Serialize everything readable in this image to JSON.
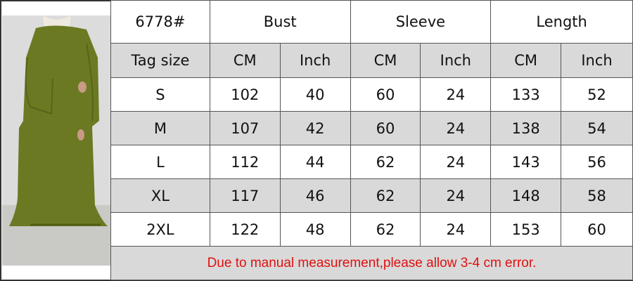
{
  "model": "6778#",
  "groups": [
    "Bust",
    "Sleeve",
    "Length"
  ],
  "subheader": {
    "tag_label": "Tag size",
    "units": [
      "CM",
      "Inch",
      "CM",
      "Inch",
      "CM",
      "Inch"
    ]
  },
  "rows": [
    {
      "size": "S",
      "values": [
        "102",
        "40",
        "60",
        "24",
        "133",
        "52"
      ]
    },
    {
      "size": "M",
      "values": [
        "107",
        "42",
        "60",
        "24",
        "138",
        "54"
      ]
    },
    {
      "size": "L",
      "values": [
        "112",
        "44",
        "62",
        "24",
        "143",
        "56"
      ]
    },
    {
      "size": "XL",
      "values": [
        "117",
        "46",
        "62",
        "24",
        "148",
        "58"
      ]
    },
    {
      "size": "2XL",
      "values": [
        "122",
        "48",
        "62",
        "24",
        "153",
        "60"
      ]
    }
  ],
  "note": "Due to manual measurement,please allow 3-4 cm error.",
  "colors": {
    "note": "#e01010",
    "shaded_row": "#d9d9d9",
    "dress": "#6b7a22"
  }
}
